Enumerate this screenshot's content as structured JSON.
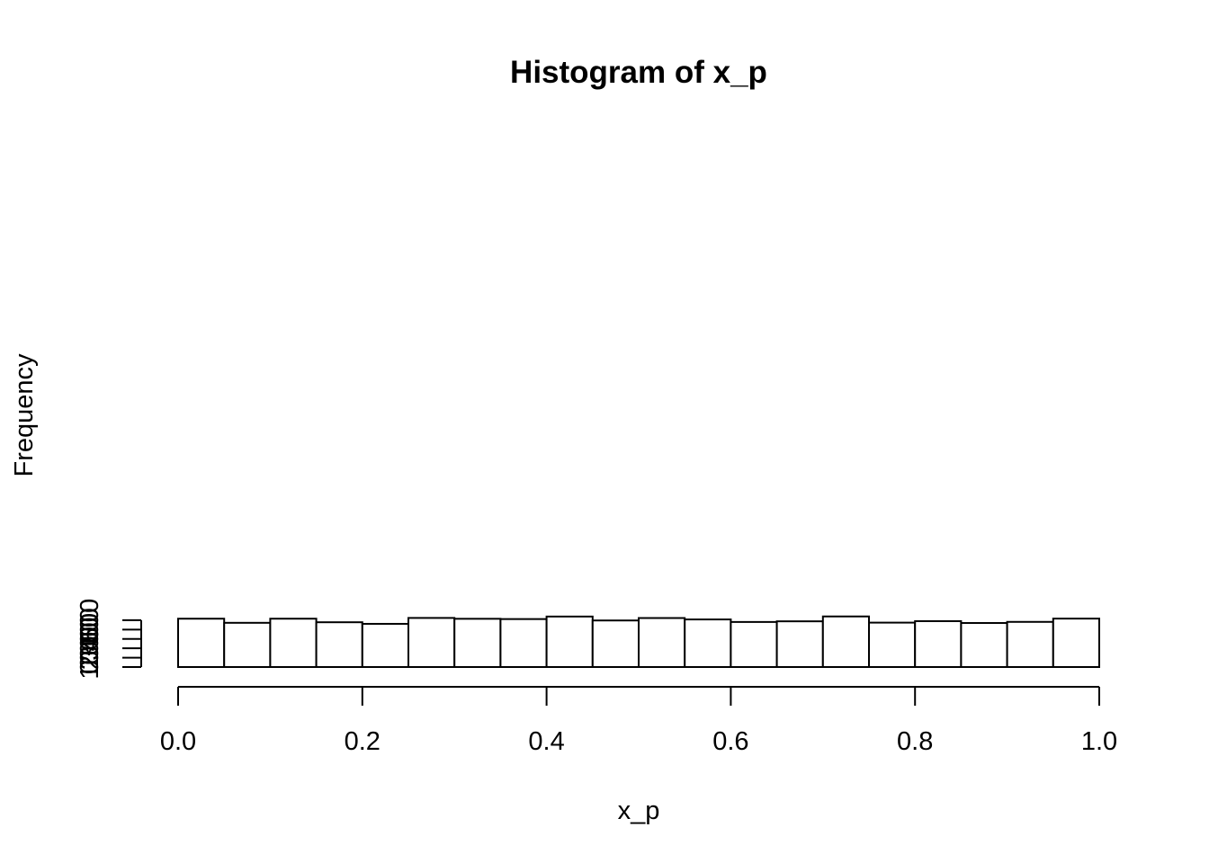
{
  "chart_data": {
    "type": "bar",
    "title": "Histogram of x_p",
    "xlabel": "x_p",
    "ylabel": "Frequency",
    "bin_edges": [
      0.0,
      0.05,
      0.1,
      0.15,
      0.2,
      0.25,
      0.3,
      0.35,
      0.4,
      0.45,
      0.5,
      0.55,
      0.6,
      0.65,
      0.7,
      0.75,
      0.8,
      0.85,
      0.9,
      0.95,
      1.0
    ],
    "values": [
      516,
      472,
      516,
      478,
      461,
      524,
      515,
      512,
      539,
      497,
      523,
      508,
      481,
      488,
      540,
      474,
      490,
      470,
      482,
      517
    ],
    "xlim": [
      0.0,
      1.0
    ],
    "ylim": [
      0,
      540
    ],
    "x_ticks": [
      0.0,
      0.2,
      0.4,
      0.6,
      0.8,
      1.0
    ],
    "x_tick_labels": [
      "0.0",
      "0.2",
      "0.4",
      "0.6",
      "0.8",
      "1.0"
    ],
    "y_ticks": [
      0,
      100,
      200,
      300,
      400,
      500
    ],
    "y_tick_labels": [
      "0",
      "100",
      "200",
      "300",
      "400",
      "500"
    ],
    "grid": false,
    "bar_fill": "#ffffff",
    "bar_stroke": "#000000"
  }
}
